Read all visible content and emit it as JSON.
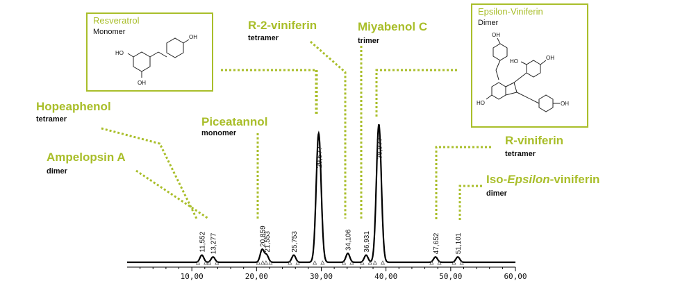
{
  "chart_data": {
    "type": "line",
    "title": "",
    "xlabel": "",
    "ylabel": "",
    "xlim": [
      0,
      60
    ],
    "ylim": [
      0,
      100
    ],
    "x_ticks": [
      "10,00",
      "20,00",
      "30,00",
      "40,00",
      "50,00",
      "60,00"
    ],
    "series": [
      {
        "name": "chromatogram",
        "color": "#000000"
      }
    ],
    "peaks": [
      {
        "rt": 11.552,
        "label": "11,552",
        "height": 4
      },
      {
        "rt": 13.277,
        "label": "13,277",
        "height": 3
      },
      {
        "rt": 20.859,
        "label": "20,859",
        "height": 7
      },
      {
        "rt": 21.553,
        "label": "21,553",
        "height": 4
      },
      {
        "rt": 25.753,
        "label": "25,753",
        "height": 4
      },
      {
        "rt": 29.6,
        "label": "29,6??",
        "height": 72
      },
      {
        "rt": 34.106,
        "label": "34,106",
        "height": 5
      },
      {
        "rt": 36.931,
        "label": "36,931",
        "height": 4
      },
      {
        "rt": 38.9,
        "label": "38,9??",
        "height": 77
      },
      {
        "rt": 47.652,
        "label": "47,652",
        "height": 3
      },
      {
        "rt": 51.101,
        "label": "51,101",
        "height": 3
      }
    ],
    "annotations": [
      {
        "name": "Resveratrol",
        "type": "Monomer"
      },
      {
        "name": "Hopeaphenol",
        "type": "tetramer"
      },
      {
        "name": "Ampelopsin A",
        "type": "dimer"
      },
      {
        "name": "Piceatannol",
        "type": "monomer"
      },
      {
        "name": "R-2-viniferin",
        "type": "tetramer"
      },
      {
        "name": "Miyabenol C",
        "type": "trimer"
      },
      {
        "name": "Epsilon-Viniferin",
        "type": "Dimer"
      },
      {
        "name": "R-viniferin",
        "type": "tetramer"
      },
      {
        "name": "Iso-Epsilon-viniferin",
        "name_pre": "Iso-",
        "name_italic": "Epsilon",
        "name_post": "-viniferin",
        "type": "dimer"
      }
    ],
    "structure_labels": {
      "oh": "OH",
      "ho": "HO"
    }
  },
  "colors": {
    "accent": "#a9be2a",
    "trace": "#000000",
    "text": "#111111"
  }
}
